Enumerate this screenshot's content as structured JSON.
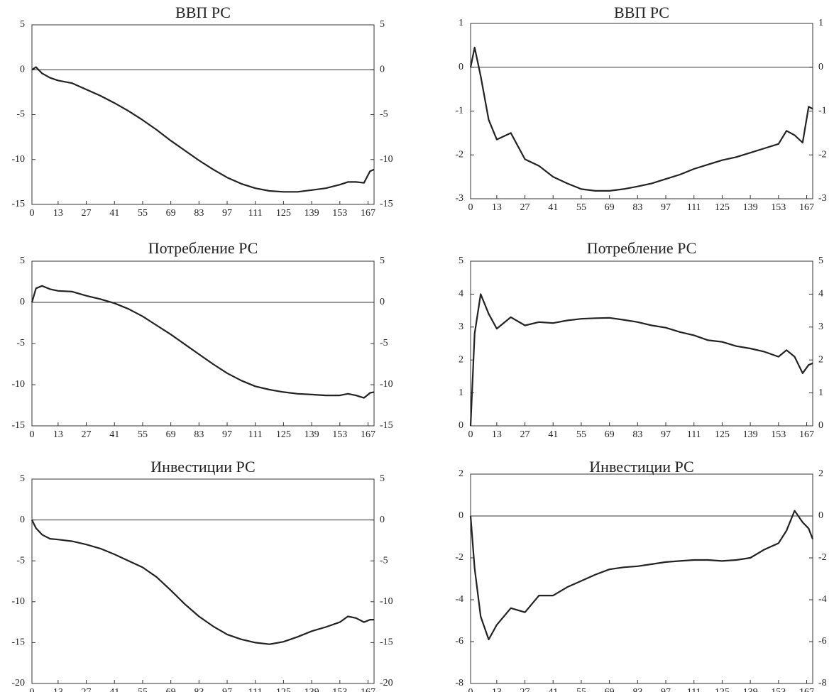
{
  "chart_data": [
    {
      "type": "line",
      "title": "ВВП РС",
      "color": "#222",
      "x": [
        0,
        2,
        5,
        9,
        13,
        20,
        27,
        34,
        41,
        48,
        55,
        62,
        69,
        76,
        83,
        90,
        97,
        104,
        111,
        118,
        125,
        132,
        139,
        146,
        153,
        157,
        161,
        165,
        168,
        170
      ],
      "values": [
        0,
        0.3,
        -0.4,
        -0.9,
        -1.2,
        -1.5,
        -2.2,
        -2.9,
        -3.7,
        -4.6,
        -5.6,
        -6.7,
        -7.9,
        -9.0,
        -10.1,
        -11.1,
        -12.0,
        -12.7,
        -13.2,
        -13.5,
        -13.6,
        -13.6,
        -13.4,
        -13.2,
        -12.8,
        -12.5,
        -12.5,
        -12.6,
        -11.3,
        -11.1
      ],
      "xlim": [
        0,
        170
      ],
      "xticks": [
        0,
        13,
        27,
        41,
        55,
        69,
        83,
        97,
        111,
        125,
        139,
        153,
        167
      ],
      "ylim": [
        -15,
        5
      ],
      "yticks": [
        -15,
        -10,
        -5,
        0,
        5
      ]
    },
    {
      "type": "line",
      "title": "ВВП РС",
      "color": "#222",
      "x": [
        0,
        2,
        5,
        9,
        13,
        20,
        27,
        34,
        41,
        48,
        55,
        62,
        69,
        76,
        83,
        90,
        97,
        104,
        111,
        118,
        125,
        132,
        139,
        146,
        153,
        157,
        161,
        165,
        168,
        170
      ],
      "values": [
        0,
        0.45,
        -0.2,
        -1.2,
        -1.65,
        -1.5,
        -2.1,
        -2.25,
        -2.5,
        -2.65,
        -2.78,
        -2.82,
        -2.82,
        -2.78,
        -2.72,
        -2.65,
        -2.55,
        -2.45,
        -2.32,
        -2.22,
        -2.12,
        -2.05,
        -1.95,
        -1.85,
        -1.75,
        -1.45,
        -1.55,
        -1.72,
        -0.9,
        -0.95
      ],
      "xlim": [
        0,
        170
      ],
      "xticks": [
        0,
        13,
        27,
        41,
        55,
        69,
        83,
        97,
        111,
        125,
        139,
        153,
        167
      ],
      "ylim": [
        -3,
        1
      ],
      "yticks": [
        -3,
        -2,
        -1,
        0,
        1
      ]
    },
    {
      "type": "line",
      "title": "Потребление РС",
      "color": "#222",
      "x": [
        0,
        2,
        5,
        9,
        13,
        20,
        27,
        34,
        41,
        48,
        55,
        62,
        69,
        76,
        83,
        90,
        97,
        104,
        111,
        118,
        125,
        132,
        139,
        146,
        153,
        157,
        161,
        165,
        168,
        170
      ],
      "values": [
        0,
        1.7,
        2.0,
        1.6,
        1.4,
        1.3,
        0.8,
        0.4,
        -0.1,
        -0.8,
        -1.7,
        -2.8,
        -3.9,
        -5.1,
        -6.3,
        -7.5,
        -8.6,
        -9.5,
        -10.2,
        -10.6,
        -10.9,
        -11.1,
        -11.2,
        -11.3,
        -11.3,
        -11.1,
        -11.3,
        -11.6,
        -11.0,
        -10.9
      ],
      "xlim": [
        0,
        170
      ],
      "xticks": [
        0,
        13,
        27,
        41,
        55,
        69,
        83,
        97,
        111,
        125,
        139,
        153,
        167
      ],
      "ylim": [
        -15,
        5
      ],
      "yticks": [
        -15,
        -10,
        -5,
        0,
        5
      ]
    },
    {
      "type": "line",
      "title": "Потребление РС",
      "color": "#222",
      "x": [
        0,
        2,
        5,
        9,
        13,
        20,
        27,
        34,
        41,
        48,
        55,
        62,
        69,
        76,
        83,
        90,
        97,
        104,
        111,
        118,
        125,
        132,
        139,
        146,
        153,
        157,
        161,
        165,
        168,
        170
      ],
      "values": [
        0,
        2.8,
        4.0,
        3.4,
        2.95,
        3.3,
        3.05,
        3.15,
        3.12,
        3.2,
        3.25,
        3.27,
        3.28,
        3.22,
        3.15,
        3.05,
        2.98,
        2.85,
        2.75,
        2.6,
        2.55,
        2.42,
        2.35,
        2.25,
        2.1,
        2.3,
        2.1,
        1.6,
        1.85,
        1.9
      ],
      "xlim": [
        0,
        170
      ],
      "xticks": [
        0,
        13,
        27,
        41,
        55,
        69,
        83,
        97,
        111,
        125,
        139,
        153,
        167
      ],
      "ylim": [
        0,
        5
      ],
      "yticks": [
        0,
        1,
        2,
        3,
        4,
        5
      ]
    },
    {
      "type": "line",
      "title": "Инвестиции РС",
      "color": "#222",
      "x": [
        0,
        2,
        5,
        9,
        13,
        20,
        27,
        34,
        41,
        48,
        55,
        62,
        69,
        76,
        83,
        90,
        97,
        104,
        111,
        118,
        125,
        132,
        139,
        146,
        153,
        157,
        161,
        165,
        168,
        170
      ],
      "values": [
        0,
        -1,
        -1.8,
        -2.3,
        -2.4,
        -2.6,
        -3.0,
        -3.5,
        -4.2,
        -5.0,
        -5.8,
        -7.0,
        -8.6,
        -10.3,
        -11.8,
        -13.0,
        -14.0,
        -14.6,
        -15.0,
        -15.2,
        -14.9,
        -14.3,
        -13.6,
        -13.1,
        -12.5,
        -11.8,
        -12.0,
        -12.5,
        -12.2,
        -12.2
      ],
      "xlim": [
        0,
        170
      ],
      "xticks": [
        0,
        13,
        27,
        41,
        55,
        69,
        83,
        97,
        111,
        125,
        139,
        153,
        167
      ],
      "ylim": [
        -20,
        5
      ],
      "yticks": [
        -20,
        -15,
        -10,
        -5,
        0,
        5
      ]
    },
    {
      "type": "line",
      "title": "Инвестиции РС",
      "color": "#222",
      "x": [
        0,
        2,
        5,
        9,
        13,
        20,
        27,
        34,
        41,
        48,
        55,
        62,
        69,
        76,
        83,
        90,
        97,
        104,
        111,
        118,
        125,
        132,
        139,
        146,
        153,
        157,
        161,
        165,
        168,
        170
      ],
      "values": [
        0,
        -2.5,
        -4.8,
        -5.9,
        -5.2,
        -4.4,
        -4.6,
        -3.8,
        -3.8,
        -3.4,
        -3.1,
        -2.8,
        -2.55,
        -2.45,
        -2.4,
        -2.3,
        -2.2,
        -2.15,
        -2.1,
        -2.1,
        -2.15,
        -2.1,
        -2.0,
        -1.6,
        -1.3,
        -0.7,
        0.25,
        -0.3,
        -0.6,
        -1.1
      ],
      "xlim": [
        0,
        170
      ],
      "xticks": [
        0,
        13,
        27,
        41,
        55,
        69,
        83,
        97,
        111,
        125,
        139,
        153,
        167
      ],
      "ylim": [
        -8,
        2
      ],
      "yticks": [
        -8,
        -6,
        -4,
        -2,
        0,
        2
      ]
    }
  ]
}
